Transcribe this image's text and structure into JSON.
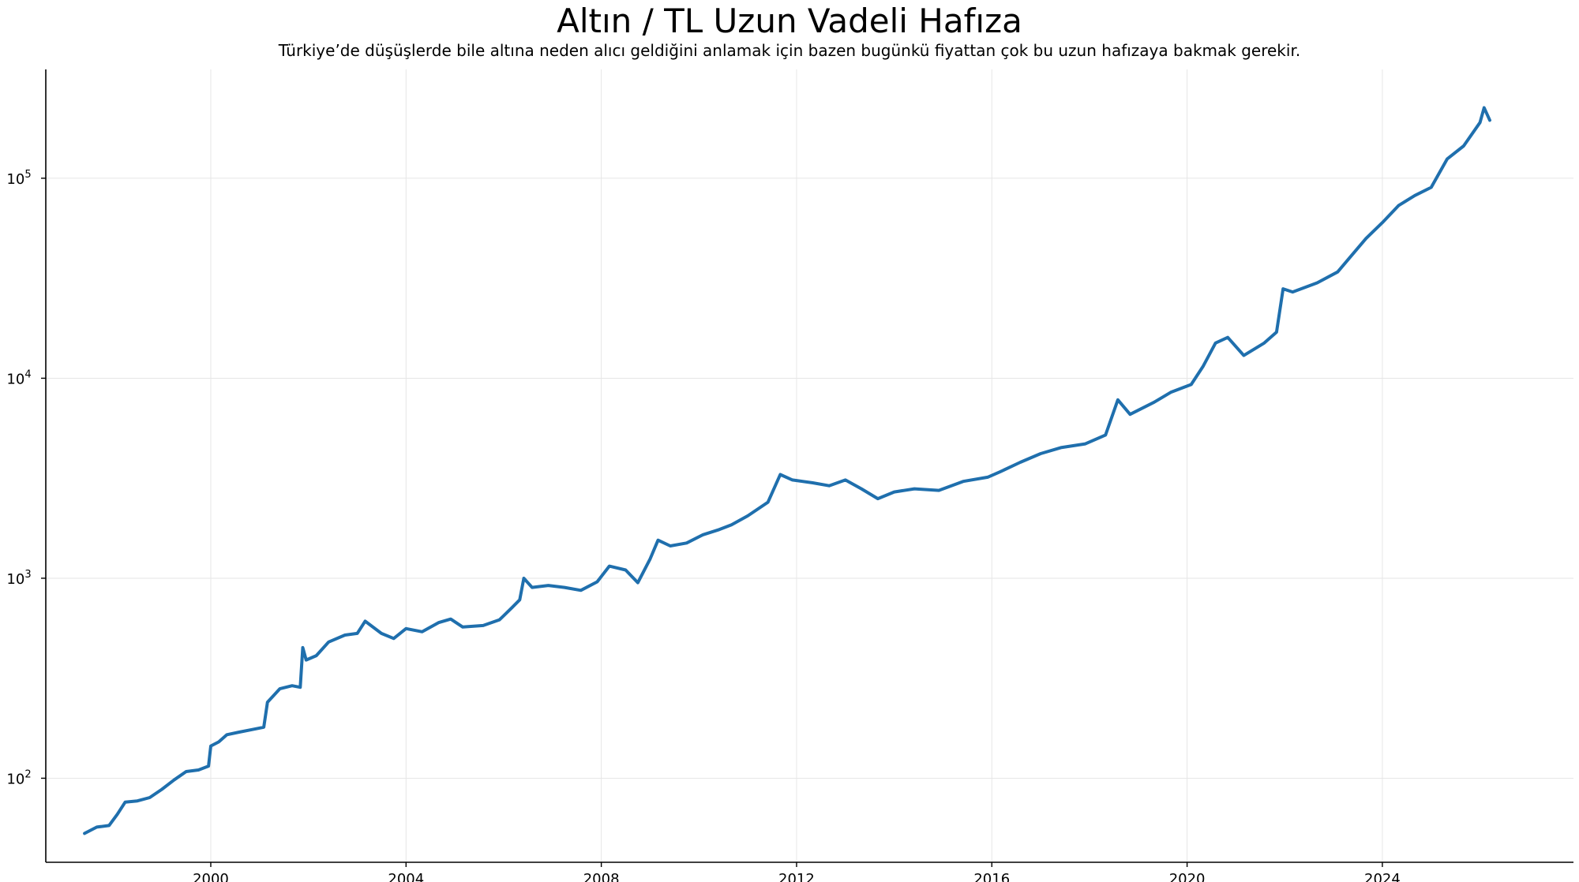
{
  "chart_data": {
    "type": "line",
    "title": "Altın / TL Uzun Vadeli Hafıza",
    "subtitle": "Türkiye’de düşüşlerde bile altına neden alıcı geldiğini anlamak için bazen bugünkü fiyattan çok bu uzun hafızaya bakmak gerekir.",
    "xlabel": "",
    "ylabel": "",
    "y_scale": "log",
    "ylim": [
      38,
      350000
    ],
    "xlim": [
      "1996-08-15",
      "2027-12-01"
    ],
    "grid": true,
    "legend": "none",
    "line_color": "#1f6fad",
    "x_ticks": [
      "2000",
      "2004",
      "2008",
      "2012",
      "2016",
      "2020",
      "2024"
    ],
    "y_ticks": [
      {
        "value": 100,
        "base": "10",
        "exp": "2"
      },
      {
        "value": 1000,
        "base": "10",
        "exp": "3"
      },
      {
        "value": 10000,
        "base": "10",
        "exp": "4"
      },
      {
        "value": 100000,
        "base": "10",
        "exp": "5"
      }
    ],
    "series": [
      {
        "values": [
          [
            "1997-06-01",
            53
          ],
          [
            "1997-09-01",
            57
          ],
          [
            "1997-12-01",
            58
          ],
          [
            "1998-02-01",
            66
          ],
          [
            "1998-04-01",
            76
          ],
          [
            "1998-07-01",
            77
          ],
          [
            "1998-10-01",
            80
          ],
          [
            "1999-01-01",
            88
          ],
          [
            "1999-04-01",
            98
          ],
          [
            "1999-07-01",
            108
          ],
          [
            "1999-10-01",
            110
          ],
          [
            "1999-12-15",
            115
          ],
          [
            "2000-01-01",
            145
          ],
          [
            "2000-03-01",
            152
          ],
          [
            "2000-05-01",
            165
          ],
          [
            "2000-08-01",
            170
          ],
          [
            "2000-11-01",
            175
          ],
          [
            "2001-02-01",
            180
          ],
          [
            "2001-03-01",
            240
          ],
          [
            "2001-06-01",
            280
          ],
          [
            "2001-09-01",
            290
          ],
          [
            "2001-11-01",
            285
          ],
          [
            "2001-11-20",
            450
          ],
          [
            "2001-12-15",
            390
          ],
          [
            "2002-03-01",
            410
          ],
          [
            "2002-06-01",
            480
          ],
          [
            "2002-10-01",
            520
          ],
          [
            "2003-01-01",
            530
          ],
          [
            "2003-03-01",
            610
          ],
          [
            "2003-07-01",
            530
          ],
          [
            "2003-10-01",
            500
          ],
          [
            "2004-01-01",
            560
          ],
          [
            "2004-05-01",
            540
          ],
          [
            "2004-09-01",
            600
          ],
          [
            "2004-12-01",
            625
          ],
          [
            "2005-03-01",
            570
          ],
          [
            "2005-08-01",
            580
          ],
          [
            "2005-12-01",
            620
          ],
          [
            "2006-03-01",
            710
          ],
          [
            "2006-05-01",
            780
          ],
          [
            "2006-06-01",
            1000
          ],
          [
            "2006-08-01",
            900
          ],
          [
            "2006-12-01",
            920
          ],
          [
            "2007-04-01",
            900
          ],
          [
            "2007-08-01",
            870
          ],
          [
            "2007-12-01",
            960
          ],
          [
            "2008-03-01",
            1150
          ],
          [
            "2008-07-01",
            1100
          ],
          [
            "2008-10-01",
            950
          ],
          [
            "2009-01-01",
            1250
          ],
          [
            "2009-03-01",
            1550
          ],
          [
            "2009-06-01",
            1450
          ],
          [
            "2009-10-01",
            1500
          ],
          [
            "2010-02-01",
            1650
          ],
          [
            "2010-06-01",
            1750
          ],
          [
            "2010-09-01",
            1850
          ],
          [
            "2011-01-01",
            2050
          ],
          [
            "2011-06-01",
            2400
          ],
          [
            "2011-09-01",
            3300
          ],
          [
            "2011-12-01",
            3100
          ],
          [
            "2012-05-01",
            3000
          ],
          [
            "2012-09-01",
            2900
          ],
          [
            "2013-01-01",
            3100
          ],
          [
            "2013-05-01",
            2800
          ],
          [
            "2013-09-01",
            2500
          ],
          [
            "2014-01-01",
            2700
          ],
          [
            "2014-06-01",
            2800
          ],
          [
            "2014-12-01",
            2750
          ],
          [
            "2015-06-01",
            3050
          ],
          [
            "2015-12-01",
            3200
          ],
          [
            "2016-03-01",
            3400
          ],
          [
            "2016-08-01",
            3800
          ],
          [
            "2017-01-01",
            4200
          ],
          [
            "2017-06-01",
            4500
          ],
          [
            "2017-12-01",
            4700
          ],
          [
            "2018-05-01",
            5200
          ],
          [
            "2018-08-01",
            7800
          ],
          [
            "2018-11-01",
            6600
          ],
          [
            "2019-05-01",
            7600
          ],
          [
            "2019-09-01",
            8500
          ],
          [
            "2020-02-01",
            9300
          ],
          [
            "2020-05-01",
            11500
          ],
          [
            "2020-08-01",
            15000
          ],
          [
            "2020-11-01",
            16000
          ],
          [
            "2021-03-01",
            13000
          ],
          [
            "2021-08-01",
            15000
          ],
          [
            "2021-11-01",
            17000
          ],
          [
            "2021-12-20",
            28000
          ],
          [
            "2022-03-01",
            27000
          ],
          [
            "2022-09-01",
            30000
          ],
          [
            "2023-02-01",
            34000
          ],
          [
            "2023-05-01",
            40000
          ],
          [
            "2023-09-01",
            50000
          ],
          [
            "2024-01-01",
            60000
          ],
          [
            "2024-05-01",
            73000
          ],
          [
            "2024-09-01",
            82000
          ],
          [
            "2025-01-01",
            90000
          ],
          [
            "2025-05-01",
            125000
          ],
          [
            "2025-09-01",
            145000
          ],
          [
            "2026-01-01",
            190000
          ],
          [
            "2026-02-01",
            225000
          ],
          [
            "2026-03-15",
            195000
          ]
        ]
      }
    ]
  }
}
